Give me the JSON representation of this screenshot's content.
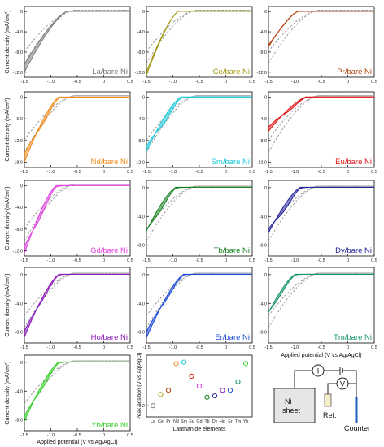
{
  "figure": {
    "ylabel": "Current density (mA/cm²)",
    "xlabel_pre": "Applied potential (V ",
    "xlabel_vs": "vs",
    "xlabel_post": " Ag/AgCl)"
  },
  "colors": {
    "reference": "#9a9a9a",
    "axis": "#222222"
  },
  "chart_data": [
    {
      "type": "line",
      "label": "La/bare Ni",
      "color": "#7a7a7a",
      "ylim": [
        -13,
        1
      ],
      "yticks": [
        0,
        -4.0,
        -8.0,
        -12.0
      ],
      "xlim": [
        -1.5,
        0.5
      ],
      "xticks": [
        -1.5,
        -1.0,
        -0.5,
        0.0,
        0.5
      ],
      "onset": -0.7,
      "min_fwd": -12.0,
      "min_bwd": -10.5,
      "hump": 0.0,
      "ref": true
    },
    {
      "type": "line",
      "label": "Ce/bare Ni",
      "color": "#a39a12",
      "ylim": [
        -13,
        1
      ],
      "yticks": [
        0,
        -4.0,
        -8.0,
        -12.0
      ],
      "xlim": [
        -1.5,
        0.5
      ],
      "xticks": [
        -1.5,
        -1.0,
        -0.5,
        0.0,
        0.5
      ],
      "onset": -0.9,
      "min_fwd": -12.6,
      "min_bwd": -12.0,
      "hump": 0.0,
      "ref": true
    },
    {
      "type": "line",
      "label": "Pr/bare Ni",
      "color": "#b5420c",
      "ylim": [
        -13,
        1
      ],
      "yticks": [
        0,
        -4.0,
        -8.0,
        -12.0
      ],
      "xlim": [
        -1.5,
        0.5
      ],
      "xticks": [
        -1.5,
        -1.0,
        -0.5,
        0.0,
        0.5
      ],
      "onset": -0.95,
      "min_fwd": -7.0,
      "min_bwd": -6.6,
      "hump": 0.25,
      "ref": true
    },
    {
      "type": "line",
      "label": "Nd/bare Ni",
      "color": "#f28c1e",
      "ylim": [
        -19.5,
        1.5
      ],
      "yticks": [
        0,
        -6.0,
        -12.0,
        -18.0
      ],
      "xlim": [
        -1.5,
        0.5
      ],
      "xticks": [
        -1.5,
        -1.0,
        -0.5,
        0.0,
        0.5
      ],
      "onset": -0.85,
      "min_fwd": -18.0,
      "min_bwd": -15.5,
      "hump": 2.0,
      "ref": true
    },
    {
      "type": "line",
      "label": "Sm/bare Ni",
      "color": "#14c8d8",
      "ylim": [
        -13,
        1
      ],
      "yticks": [
        0,
        -4.0,
        -8.0,
        -12.0
      ],
      "xlim": [
        -1.5,
        0.5
      ],
      "xticks": [
        -1.5,
        -1.0,
        -0.5,
        0.0,
        0.5
      ],
      "onset": -0.85,
      "min_fwd": -10.0,
      "min_bwd": -9.0,
      "hump": 1.4,
      "ref": true
    },
    {
      "type": "line",
      "label": "Eu/bare Ni",
      "color": "#e01414",
      "ylim": [
        -13,
        1
      ],
      "yticks": [
        0,
        -4.0,
        -8.0,
        -12.0
      ],
      "xlim": [
        -1.5,
        0.5
      ],
      "xticks": [
        -1.5,
        -1.0,
        -0.5,
        0.0,
        0.5
      ],
      "onset": -0.8,
      "min_fwd": -6.3,
      "min_bwd": -5.5,
      "hump": 0.7,
      "ref": true
    },
    {
      "type": "line",
      "label": "Gd/bare Ni",
      "color": "#e040e0",
      "ylim": [
        -13,
        1
      ],
      "yticks": [
        0,
        -4.0,
        -8.0,
        -12.0
      ],
      "xlim": [
        -1.5,
        0.5
      ],
      "xticks": [
        -1.5,
        -1.0,
        -0.5,
        0.0,
        0.5
      ],
      "onset": -0.9,
      "min_fwd": -12.5,
      "min_bwd": -11.0,
      "hump": 1.6,
      "ref": true
    },
    {
      "type": "line",
      "label": "Tb/bare Ni",
      "color": "#16801e",
      "ylim": [
        -9.5,
        1
      ],
      "yticks": [
        0,
        -4.0,
        -8.0
      ],
      "xlim": [
        -1.5,
        0.5
      ],
      "xticks": [
        -1.5,
        -1.0,
        -0.5,
        0.0,
        0.5
      ],
      "onset": -0.95,
      "min_fwd": -6.0,
      "min_bwd": -5.6,
      "hump": 0.9,
      "ref": true
    },
    {
      "type": "line",
      "label": "Dy/bare Ni",
      "color": "#22229a",
      "ylim": [
        -9.5,
        1
      ],
      "yticks": [
        0,
        -4.0,
        -8.0
      ],
      "xlim": [
        -1.5,
        0.5
      ],
      "xticks": [
        -1.5,
        -1.0,
        -0.5,
        0.0,
        0.5
      ],
      "onset": -0.9,
      "min_fwd": -6.3,
      "min_bwd": -5.6,
      "hump": 1.0,
      "ref": true
    },
    {
      "type": "line",
      "label": "Ho/bare Ni",
      "color": "#8a1ab8",
      "ylim": [
        -9.5,
        1
      ],
      "yticks": [
        0,
        -4.0,
        -8.0
      ],
      "xlim": [
        -1.5,
        0.5
      ],
      "xticks": [
        -1.5,
        -1.0,
        -0.5,
        0.0,
        0.5
      ],
      "onset": -0.85,
      "min_fwd": -8.7,
      "min_bwd": -7.8,
      "hump": 0.7,
      "ref": true
    },
    {
      "type": "line",
      "label": "Er/bare Ni",
      "color": "#1a4ad8",
      "ylim": [
        -9.5,
        1
      ],
      "yticks": [
        0,
        -4.0,
        -8.0
      ],
      "xlim": [
        -1.5,
        0.5
      ],
      "xticks": [
        -1.5,
        -1.0,
        -0.5,
        0.0,
        0.5
      ],
      "onset": -0.8,
      "min_fwd": -8.8,
      "min_bwd": -7.9,
      "hump": 0.7,
      "ref": true
    },
    {
      "type": "line",
      "label": "Tm/bare Ni",
      "color": "#13906c",
      "ylim": [
        -9.5,
        1
      ],
      "yticks": [
        0,
        -4.0,
        -8.0
      ],
      "xlim": [
        -1.5,
        0.5
      ],
      "xticks": [
        -1.5,
        -1.0,
        -0.5,
        0.0,
        0.5
      ],
      "onset": -1.0,
      "min_fwd": -5.3,
      "min_bwd": -4.9,
      "hump": 0.7,
      "ref": true
    },
    {
      "type": "line",
      "label": "Yb/bare Ni",
      "color": "#34d02a",
      "ylim": [
        -9.5,
        1
      ],
      "yticks": [
        0,
        -4.0,
        -8.0
      ],
      "xlim": [
        -1.5,
        0.5
      ],
      "xticks": [
        -1.5,
        -1.0,
        -0.5,
        0.0,
        0.5
      ],
      "onset": -0.85,
      "min_fwd": -8.2,
      "min_bwd": -7.4,
      "hump": 0.9,
      "ref": true
    },
    {
      "type": "scatter",
      "ylabel": "Peak position (V vs Ag/AgCl)",
      "xlabel": "Lanthanide elements",
      "categories": [
        "La",
        "Ce",
        "Pr",
        "Nd",
        "Sm",
        "Eu",
        "Gd",
        "Tb",
        "Dy",
        "Ho",
        "Er",
        "Tm",
        "Yb"
      ],
      "values": [
        -1.2,
        -1.12,
        -1.09,
        -0.9,
        -0.89,
        -0.99,
        -1.06,
        -1.14,
        -1.13,
        -1.09,
        -1.09,
        -1.03,
        -0.9
      ],
      "colors": [
        "#7a7a7a",
        "#a39a12",
        "#b5420c",
        "#f28c1e",
        "#14c8d8",
        "#e01414",
        "#e040e0",
        "#16801e",
        "#22229a",
        "#8a1ab8",
        "#1a4ad8",
        "#13906c",
        "#34d02a"
      ],
      "ylim": [
        -1.28,
        -0.84
      ],
      "yticks": [
        -1.2
      ]
    }
  ],
  "schematic": {
    "current_meter": "I",
    "voltage_meter": "V",
    "working_electrode_line1": "Ni",
    "working_electrode_line2": "sheet",
    "reference_electrode": "Ref.",
    "counter_electrode": "Counter"
  }
}
